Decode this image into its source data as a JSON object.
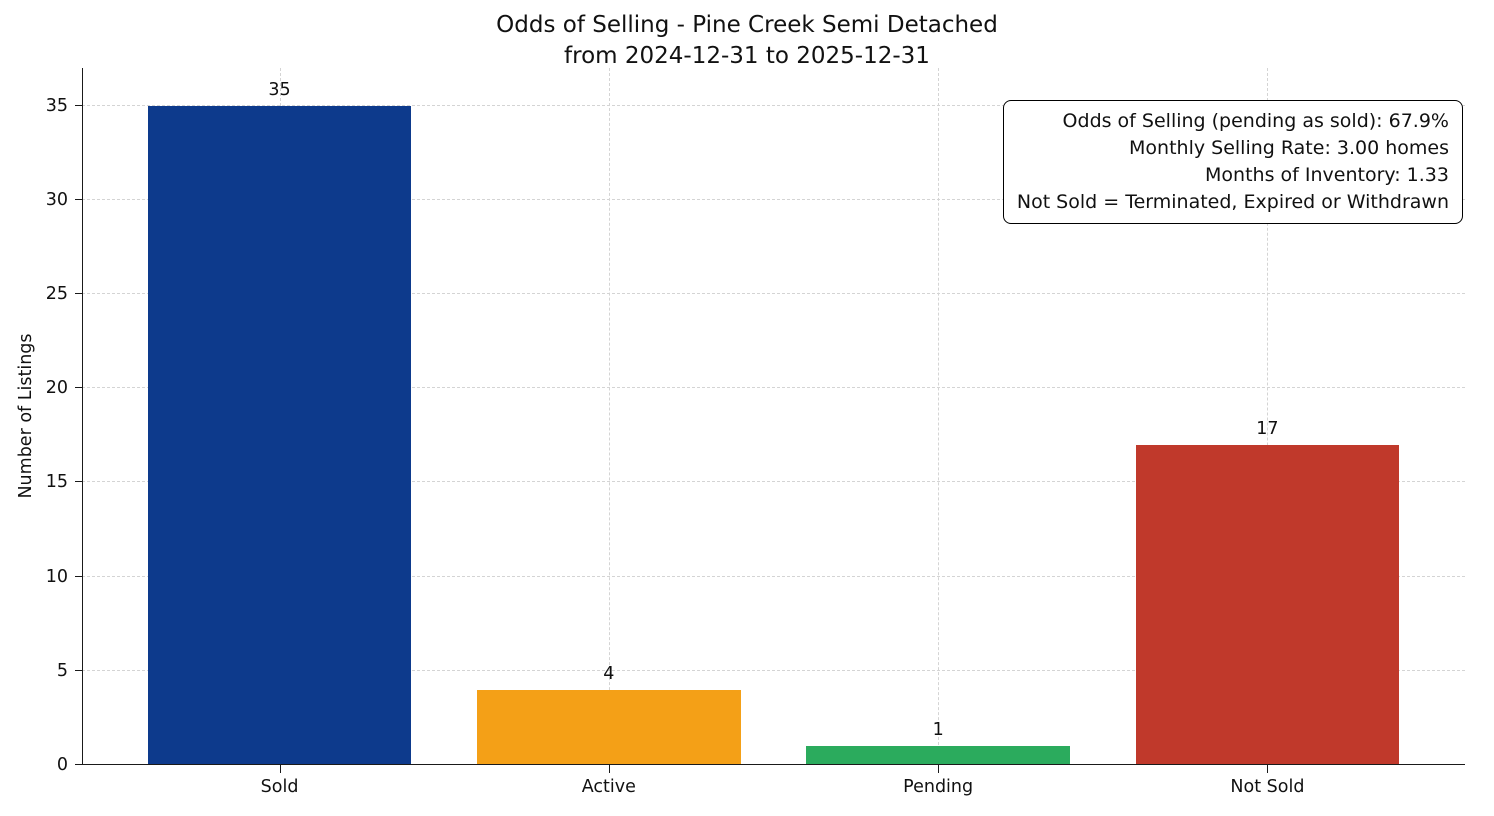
{
  "chart_data": {
    "type": "bar",
    "title": "Odds of Selling - Pine Creek Semi Detached",
    "subtitle": "from 2024-12-31 to 2025-12-31",
    "categories": [
      "Sold",
      "Active",
      "Pending",
      "Not Sold"
    ],
    "values": [
      35,
      4,
      1,
      17
    ],
    "bar_colors": [
      "#0d3a8c",
      "#f4a017",
      "#2bab5d",
      "#c0392b"
    ],
    "xlabel": "",
    "ylabel": "Number of Listings",
    "ylim": [
      0,
      37
    ],
    "yticks": [
      0,
      5,
      10,
      15,
      20,
      25,
      30,
      35
    ],
    "grid": true,
    "legend": "none",
    "annotation_lines": [
      "Odds of Selling (pending as sold): 67.9%",
      "Monthly Selling Rate: 3.00 homes",
      "Months of Inventory: 1.33",
      "Not Sold = Terminated, Expired or Withdrawn"
    ]
  }
}
